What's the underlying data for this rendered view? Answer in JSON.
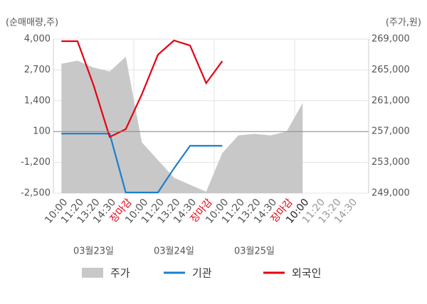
{
  "chart_data": {
    "type": "combo",
    "y_label": "(순매매량,주)",
    "y2_label": "(주가,원)",
    "categories": [
      "10:00",
      "11:20",
      "13:20",
      "14:30",
      "장마감",
      "10:00",
      "11:20",
      "13:20",
      "14:30",
      "장마감",
      "10:00",
      "11:20",
      "13:20",
      "14:30",
      "장마감",
      "10:00",
      "11:20",
      "13:20",
      "14:30"
    ],
    "category_colors": [
      "#555",
      "#555",
      "#555",
      "#555",
      "#e60012",
      "#555",
      "#555",
      "#555",
      "#555",
      "#e60012",
      "#555",
      "#555",
      "#555",
      "#555",
      "#e60012",
      "#222",
      "#999",
      "#999",
      "#999"
    ],
    "day_labels": [
      "03월23일",
      "03월24일",
      "03월25일"
    ],
    "ylim": [
      -2500,
      4000
    ],
    "yticks": [
      {
        "value": 4000,
        "label": "4,000"
      },
      {
        "value": 2700,
        "label": "2,700"
      },
      {
        "value": 1400,
        "label": "1,400"
      },
      100,
      {
        "value": -1200,
        "label": "-1,200"
      },
      {
        "value": -2500,
        "label": "-2,500"
      }
    ],
    "y2lim": [
      249000,
      269000
    ],
    "y2ticks": [
      {
        "value": 269000,
        "label": "269,000"
      },
      {
        "value": 265000,
        "label": "265,000"
      },
      {
        "value": 261000,
        "label": "261,000"
      },
      {
        "value": 257000,
        "label": "257,000"
      },
      {
        "value": 253000,
        "label": "253,000"
      },
      {
        "value": 249000,
        "label": "249,000"
      }
    ],
    "series": [
      {
        "name": "주가",
        "kind": "area",
        "axis": "y2",
        "color": "#c8c8c8",
        "values": [
          265800,
          266200,
          265300,
          264800,
          266700,
          255600,
          253300,
          251000,
          250100,
          249200,
          254200,
          256500,
          256700,
          256500,
          257000,
          260700,
          null,
          null,
          null
        ]
      },
      {
        "name": "기관",
        "kind": "line",
        "color": "#1a7fd0",
        "values": [
          10,
          10,
          10,
          10,
          -2470,
          -2470,
          -2470,
          -1450,
          -500,
          -500,
          -500,
          null,
          null,
          null,
          null,
          null,
          null,
          null,
          null
        ]
      },
      {
        "name": "외국인",
        "kind": "line",
        "color": "#e60012",
        "values": [
          3910,
          3910,
          2050,
          -130,
          200,
          1670,
          3340,
          3940,
          3730,
          2140,
          3070,
          null,
          null,
          null,
          null,
          null,
          null,
          null,
          null
        ]
      }
    ]
  }
}
